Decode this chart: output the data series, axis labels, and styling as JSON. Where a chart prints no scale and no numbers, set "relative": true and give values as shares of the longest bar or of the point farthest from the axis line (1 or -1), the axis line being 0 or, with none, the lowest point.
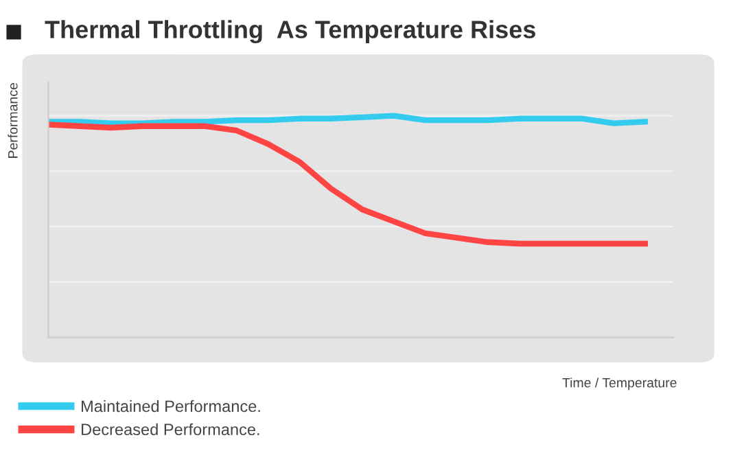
{
  "chart_data": {
    "type": "line",
    "title": "Thermal Throttling  As Temperature Rises",
    "xlabel": "Time / Temperature",
    "ylabel": "Performance",
    "relative": true,
    "legend": "bottom",
    "grid": "y",
    "marker": "none",
    "line_style": "solid",
    "categories": [
      null,
      null,
      null,
      null,
      null,
      null,
      null,
      null,
      null,
      null,
      null,
      null,
      null,
      null,
      null,
      null,
      null,
      null,
      null,
      null
    ],
    "series": [
      {
        "name": "Maintained Performance.",
        "color": "#33ccee",
        "values": [
          0.973,
          0.973,
          0.966,
          0.966,
          0.973,
          0.973,
          0.98,
          0.98,
          0.987,
          0.987,
          0.993,
          1.0,
          0.98,
          0.98,
          0.98,
          0.987,
          0.987,
          0.987,
          0.966,
          0.973
        ]
      },
      {
        "name": "Decreased Performance.",
        "color": "#ff4444",
        "values": [
          0.96,
          0.953,
          0.946,
          0.953,
          0.953,
          0.953,
          0.933,
          0.872,
          0.792,
          0.671,
          0.577,
          0.523,
          0.47,
          0.45,
          0.43,
          0.423,
          0.423,
          0.423,
          0.423,
          0.423
        ]
      }
    ]
  }
}
